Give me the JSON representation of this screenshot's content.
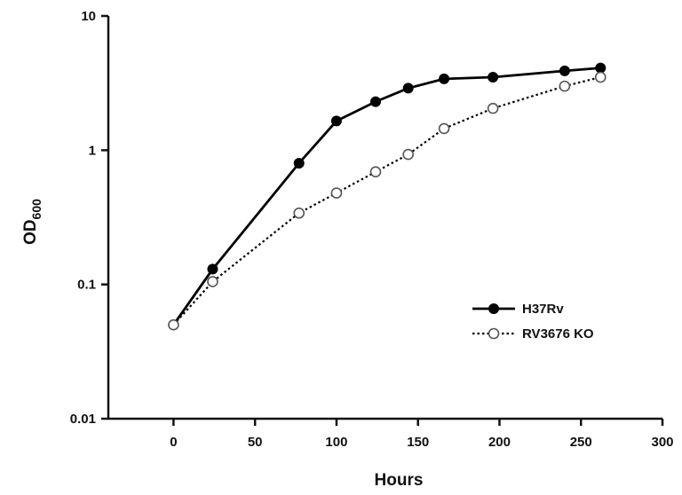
{
  "chart_data": {
    "type": "line",
    "title": "",
    "xlabel": "Hours",
    "ylabel": {
      "main": "OD",
      "sub": "600"
    },
    "x_scale": "linear",
    "y_scale": "log",
    "xlim": [
      -40,
      300
    ],
    "ylim": [
      0.01,
      10
    ],
    "x_ticks": [
      0,
      50,
      100,
      150,
      200,
      250,
      300
    ],
    "x_tick_labels": [
      "0",
      "50",
      "100",
      "150",
      "200",
      "250",
      "300"
    ],
    "y_ticks": [
      0.01,
      0.1,
      1,
      10
    ],
    "y_tick_labels": [
      "0.01",
      "0.1",
      "1",
      "10"
    ],
    "grid": false,
    "legend_position": "right",
    "series": [
      {
        "name": "H37Rv",
        "style": "solid",
        "marker": "filled-circle",
        "color": "#000000",
        "x": [
          0,
          24,
          77,
          100,
          124,
          144,
          166,
          196,
          240,
          262
        ],
        "y": [
          0.05,
          0.13,
          0.8,
          1.65,
          2.3,
          2.9,
          3.4,
          3.5,
          3.9,
          4.1
        ]
      },
      {
        "name": "RV3676 KO",
        "style": "dotted",
        "marker": "open-circle",
        "color": "#000000",
        "x": [
          0,
          24,
          77,
          100,
          124,
          144,
          166,
          196,
          240,
          262
        ],
        "y": [
          0.05,
          0.105,
          0.34,
          0.48,
          0.69,
          0.93,
          1.45,
          2.05,
          3.0,
          3.5
        ]
      }
    ]
  }
}
